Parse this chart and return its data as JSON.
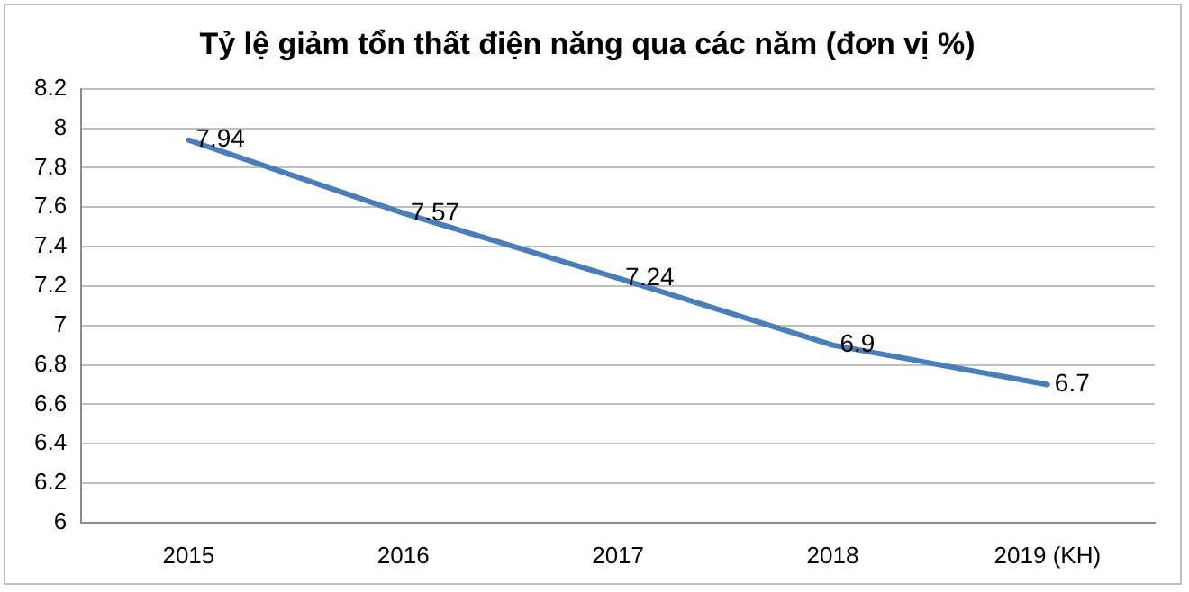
{
  "chart_data": {
    "type": "line",
    "title": "Tỷ lệ giảm tổn thất điện năng qua các năm (đơn vị %)",
    "categories": [
      "2015",
      "2016",
      "2017",
      "2018",
      "2019 (KH)"
    ],
    "values": [
      7.94,
      7.57,
      7.24,
      6.9,
      6.7
    ],
    "color": "#4a7ebb",
    "ylim": [
      6,
      8.2
    ],
    "yticks": [
      6,
      6.2,
      6.4,
      6.6,
      6.8,
      7,
      7.2,
      7.4,
      7.6,
      7.8,
      8,
      8.2
    ],
    "grid": "y",
    "data_labels": true,
    "marker": "none",
    "line_style": "solid",
    "legend": false
  }
}
